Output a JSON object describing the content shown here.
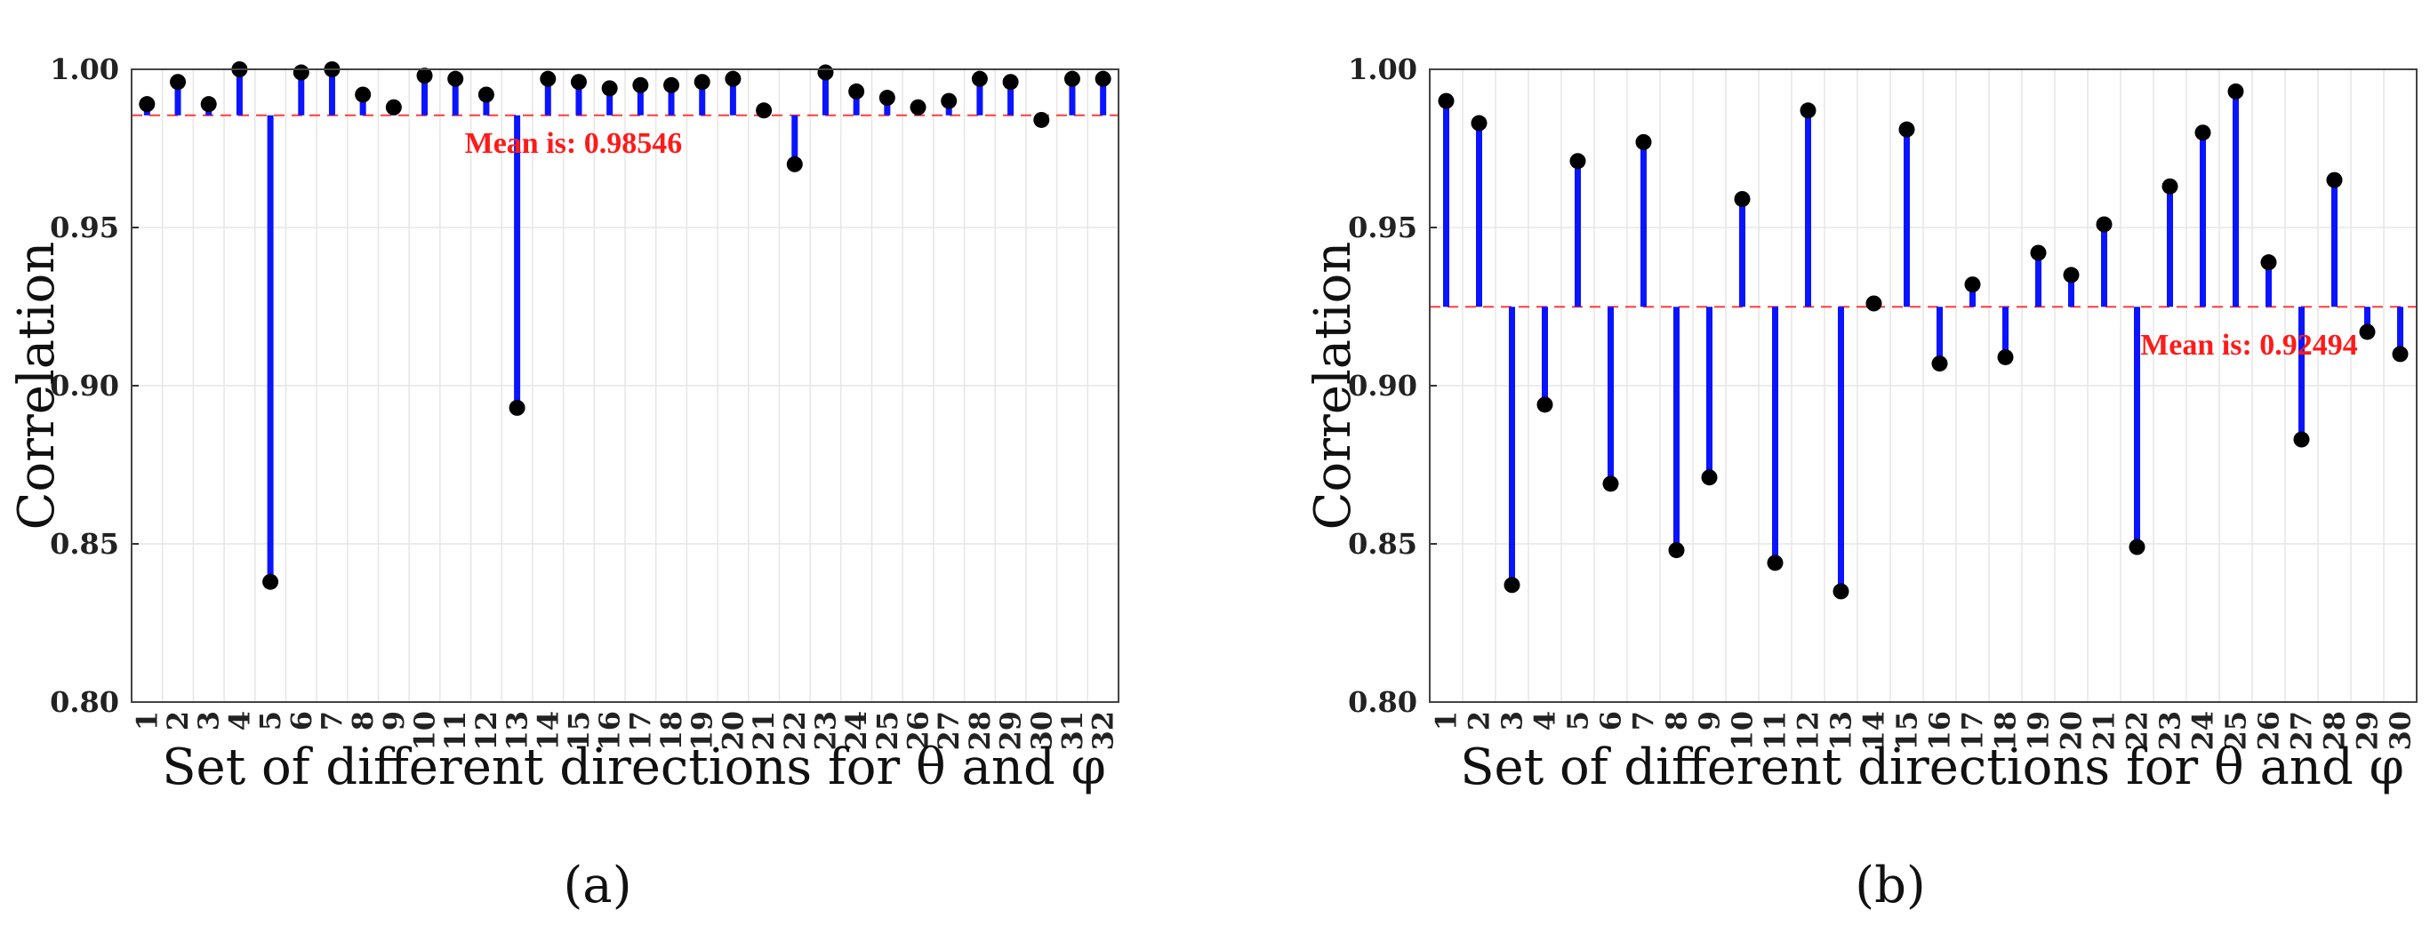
{
  "chart_data": [
    {
      "type": "stem",
      "panel_label": "(a)",
      "xlabel": "Set of different directions for θ and φ",
      "ylabel": "Correlation",
      "ylim": [
        0.8,
        1.0
      ],
      "yticks": [
        "0.80",
        "0.85",
        "0.90",
        "0.95",
        "1.00"
      ],
      "grid": true,
      "mean_label": "Mean is: 0.98546",
      "mean": 0.98546,
      "categories": [
        "1",
        "2",
        "3",
        "4",
        "5",
        "6",
        "7",
        "8",
        "9",
        "10",
        "11",
        "12",
        "13",
        "14",
        "15",
        "16",
        "17",
        "18",
        "19",
        "20",
        "21",
        "22",
        "23",
        "24",
        "25",
        "26",
        "27",
        "28",
        "29",
        "30",
        "31",
        "32"
      ],
      "values": [
        0.989,
        0.996,
        0.989,
        1.0,
        0.838,
        0.999,
        1.0,
        0.992,
        0.988,
        0.998,
        0.997,
        0.992,
        0.893,
        0.997,
        0.996,
        0.994,
        0.995,
        0.995,
        0.996,
        0.997,
        0.987,
        0.97,
        0.999,
        0.993,
        0.991,
        0.988,
        0.99,
        0.997,
        0.996,
        0.984,
        0.997,
        0.997
      ],
      "colors": {
        "stem": "#0a14ff",
        "marker": "#000000",
        "mean": "#ff3b3b"
      }
    },
    {
      "type": "stem",
      "panel_label": "(b)",
      "xlabel": "Set of different directions for θ and φ",
      "ylabel": "Correlation",
      "ylim": [
        0.8,
        1.0
      ],
      "yticks": [
        "0.80",
        "0.85",
        "0.90",
        "0.95",
        "1.00"
      ],
      "grid": true,
      "mean_label": "Mean is: 0.92494",
      "mean": 0.92494,
      "categories": [
        "1",
        "2",
        "3",
        "4",
        "5",
        "6",
        "7",
        "8",
        "9",
        "10",
        "11",
        "12",
        "13",
        "14",
        "15",
        "16",
        "17",
        "18",
        "19",
        "20",
        "21",
        "22",
        "23",
        "24",
        "25",
        "26",
        "27",
        "28",
        "29",
        "30"
      ],
      "values": [
        0.99,
        0.983,
        0.837,
        0.894,
        0.971,
        0.869,
        0.977,
        0.848,
        0.871,
        0.959,
        0.844,
        0.987,
        0.835,
        0.926,
        0.981,
        0.907,
        0.932,
        0.909,
        0.942,
        0.935,
        0.951,
        0.849,
        0.963,
        0.98,
        0.993,
        0.939,
        0.883,
        0.965,
        0.917,
        0.91
      ],
      "colors": {
        "stem": "#0a14ff",
        "marker": "#000000",
        "mean": "#ff3b3b"
      }
    }
  ]
}
